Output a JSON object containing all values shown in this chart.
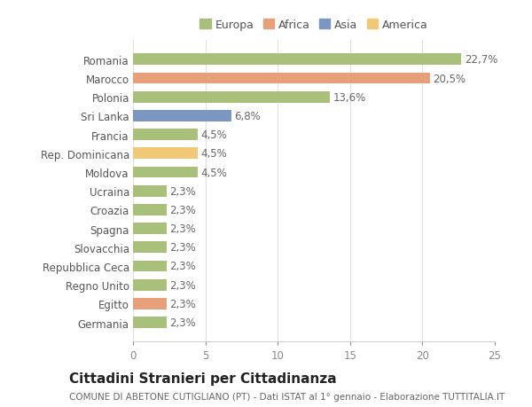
{
  "categories": [
    "Germania",
    "Egitto",
    "Regno Unito",
    "Repubblica Ceca",
    "Slovacchia",
    "Spagna",
    "Croazia",
    "Ucraina",
    "Moldova",
    "Rep. Dominicana",
    "Francia",
    "Sri Lanka",
    "Polonia",
    "Marocco",
    "Romania"
  ],
  "values": [
    2.3,
    2.3,
    2.3,
    2.3,
    2.3,
    2.3,
    2.3,
    2.3,
    4.5,
    4.5,
    4.5,
    6.8,
    13.6,
    20.5,
    22.7
  ],
  "colors": [
    "#a8c07a",
    "#e8a07a",
    "#a8c07a",
    "#a8c07a",
    "#a8c07a",
    "#a8c07a",
    "#a8c07a",
    "#a8c07a",
    "#a8c07a",
    "#f0c878",
    "#a8c07a",
    "#7b96c0",
    "#a8c07a",
    "#e8a07a",
    "#a8c07a"
  ],
  "labels": [
    "2,3%",
    "2,3%",
    "2,3%",
    "2,3%",
    "2,3%",
    "2,3%",
    "2,3%",
    "2,3%",
    "4,5%",
    "4,5%",
    "4,5%",
    "6,8%",
    "13,6%",
    "20,5%",
    "22,7%"
  ],
  "legend_labels": [
    "Europa",
    "Africa",
    "Asia",
    "America"
  ],
  "legend_colors": [
    "#a8c07a",
    "#e8a07a",
    "#7b96c0",
    "#f0c878"
  ],
  "title": "Cittadini Stranieri per Cittadinanza",
  "subtitle": "COMUNE DI ABETONE CUTIGLIANO (PT) - Dati ISTAT al 1° gennaio - Elaborazione TUTTITALIA.IT",
  "xlim": [
    0,
    25
  ],
  "xticks": [
    0,
    5,
    10,
    15,
    20,
    25
  ],
  "background_color": "#ffffff",
  "grid_color": "#e0e0e0",
  "bar_height": 0.6,
  "label_fontsize": 8.5,
  "tick_fontsize": 8.5,
  "title_fontsize": 11,
  "subtitle_fontsize": 7.5
}
